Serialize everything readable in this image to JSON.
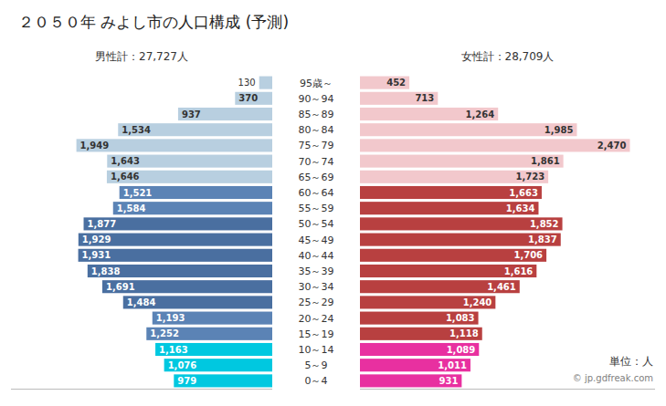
{
  "chart_data": {
    "type": "bar",
    "orientation": "horizontal",
    "title": "２０５０年 みよし市の人口構成 (予測)",
    "annotations": [
      "単位：人",
      "© jp.gdfreak.com"
    ],
    "categories": [
      "95歳～",
      "90～94",
      "85～89",
      "80～84",
      "75～79",
      "70～74",
      "65～69",
      "60～64",
      "55～59",
      "50～54",
      "45～49",
      "40～44",
      "35～39",
      "30～34",
      "25～29",
      "20～24",
      "15～19",
      "10～14",
      "5～9",
      "0～4"
    ],
    "series": [
      {
        "name": "男性計：27,727人",
        "values": [
          130,
          370,
          937,
          1534,
          1949,
          1643,
          1646,
          1521,
          1584,
          1877,
          1929,
          1931,
          1838,
          1691,
          1484,
          1193,
          1252,
          1163,
          1076,
          979
        ],
        "value_labels": [
          "130",
          "370",
          "937",
          "1,534",
          "1,949",
          "1,643",
          "1,646",
          "1,521",
          "1,584",
          "1,877",
          "1,929",
          "1,931",
          "1,838",
          "1,691",
          "1,484",
          "1,193",
          "1,252",
          "1,163",
          "1,076",
          "979"
        ],
        "colors": [
          "#b8cfe0",
          "#b8cfe0",
          "#b8cfe0",
          "#b8cfe0",
          "#b8cfe0",
          "#b8cfe0",
          "#b8cfe0",
          "#5b83b5",
          "#5b83b5",
          "#4a6fa0",
          "#4a6fa0",
          "#4a6fa0",
          "#4a6fa0",
          "#4a6fa0",
          "#4a6fa0",
          "#5b83b5",
          "#5b83b5",
          "#00c8e0",
          "#00c8e0",
          "#00c8e0"
        ],
        "xlim": [
          0,
          2600
        ]
      },
      {
        "name": "女性計：28,709人",
        "values": [
          452,
          713,
          1264,
          1985,
          2470,
          1861,
          1723,
          1663,
          1634,
          1852,
          1837,
          1706,
          1616,
          1461,
          1240,
          1083,
          1118,
          1089,
          1011,
          931
        ],
        "value_labels": [
          "452",
          "713",
          "1,264",
          "1,985",
          "2,470",
          "1,861",
          "1,723",
          "1,663",
          "1,634",
          "1,852",
          "1,837",
          "1,706",
          "1,616",
          "1,461",
          "1,240",
          "1,083",
          "1,118",
          "1,089",
          "1,011",
          "931"
        ],
        "colors": [
          "#f2c8cc",
          "#f2c8cc",
          "#f2c8cc",
          "#f2c8cc",
          "#f2c8cc",
          "#f2c8cc",
          "#f2c8cc",
          "#b84040",
          "#b84040",
          "#b84040",
          "#b84040",
          "#b84040",
          "#b84040",
          "#b84040",
          "#b84040",
          "#b84040",
          "#b84040",
          "#e830a0",
          "#e830a0",
          "#e830a0"
        ],
        "xlim": [
          0,
          2700
        ]
      }
    ],
    "data_labels": true,
    "tick_labels": false,
    "grid": false
  }
}
